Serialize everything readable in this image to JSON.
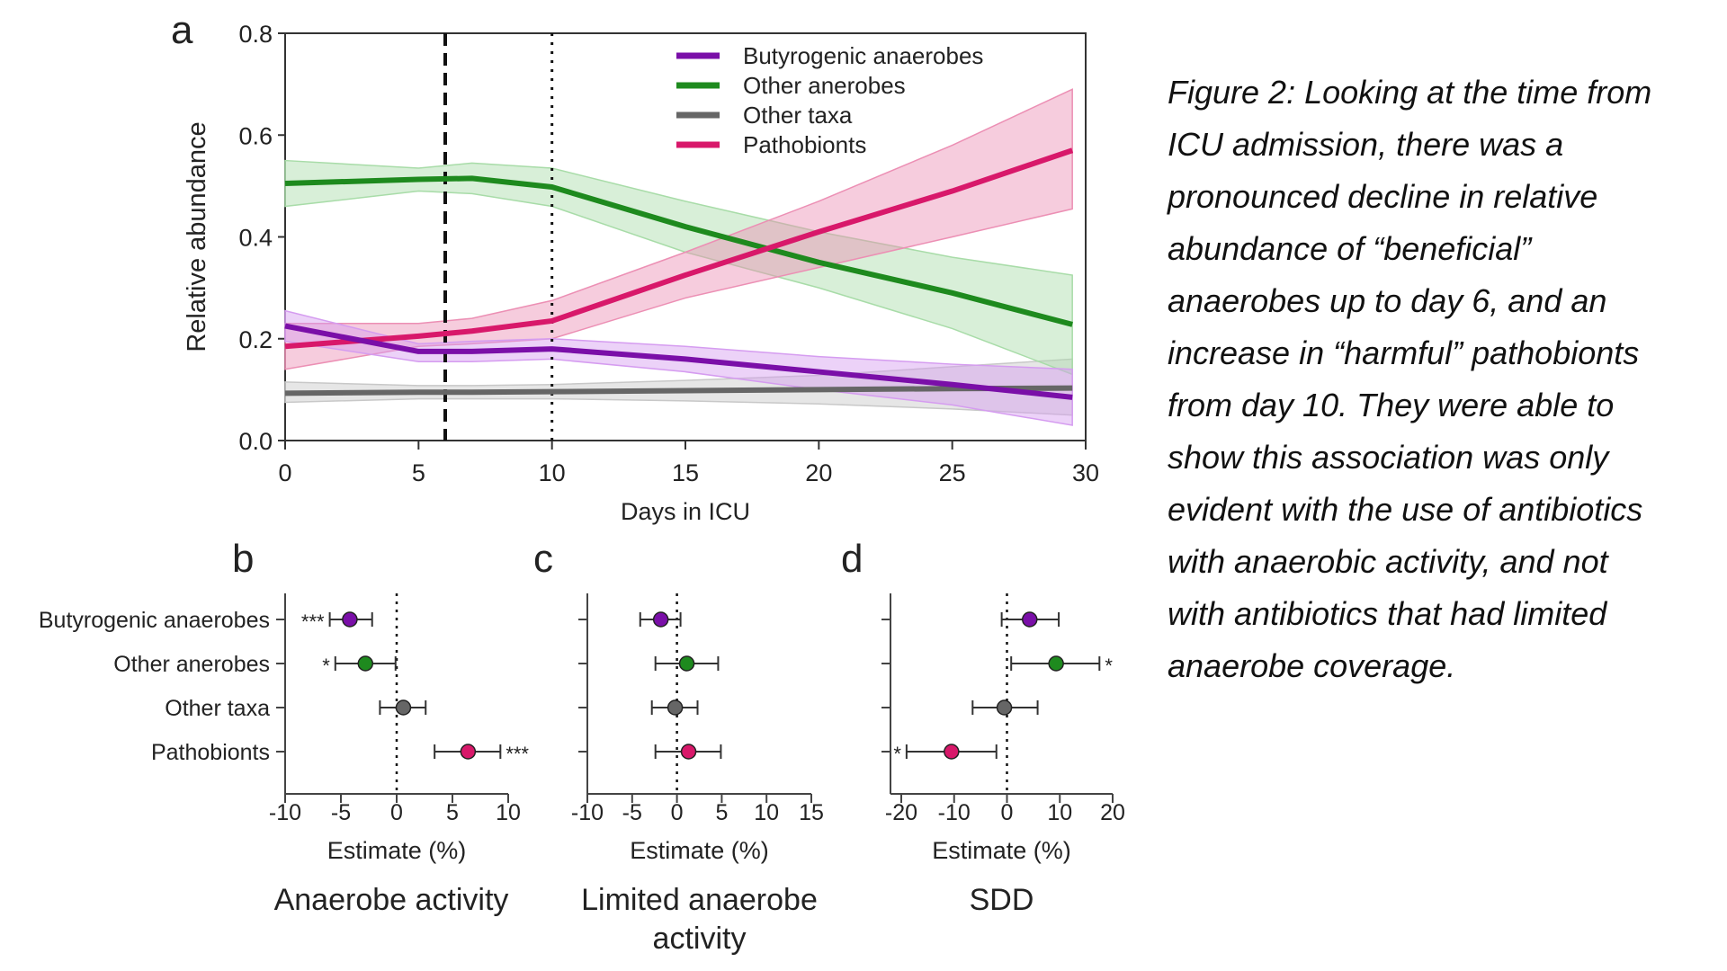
{
  "caption_lines": [
    "Figure 2: Looking at the time from",
    "ICU admission, there was a",
    "pronounced decline in relative",
    "abundance of “beneficial”",
    "anaerobes up to day 6, and an",
    "increase in “harmful” pathobionts",
    "from day 10. They were able to",
    "show this association was only",
    "evident with the use of antibiotics",
    "with anaerobic activity, and not",
    "with antibiotics that had limited",
    "anaerobe coverage."
  ],
  "colors": {
    "Butyrogenic anaerobes": "#7a0fa8",
    "Other anerobes": "#1e8a1e",
    "Other taxa": "#666666",
    "Pathobionts": "#d8186a"
  },
  "band_colors": {
    "Butyrogenic anaerobes": "#d59cf0",
    "Other anerobes": "#a8dca8",
    "Other taxa": "#c8c8c8",
    "Pathobionts": "#ec8fb4"
  },
  "chart_data": [
    {
      "panel": "a",
      "type": "line",
      "xlabel": "Days in ICU",
      "ylabel": "Relative abundance",
      "xlim": [
        0,
        30
      ],
      "ylim": [
        0,
        0.8
      ],
      "xticks": [
        0,
        5,
        10,
        15,
        20,
        25,
        30
      ],
      "yticks": [
        "0.0",
        "0.2",
        "0.4",
        "0.6",
        "0.8"
      ],
      "vlines": [
        {
          "x": 6,
          "style": "dashed"
        },
        {
          "x": 10,
          "style": "dotted"
        }
      ],
      "legend": "top-right",
      "x": [
        0,
        5,
        7,
        10,
        15,
        20,
        25,
        29.5
      ],
      "series": [
        {
          "name": "Butyrogenic anaerobes",
          "values": [
            0.225,
            0.175,
            0.175,
            0.18,
            0.16,
            0.135,
            0.11,
            0.085
          ],
          "lower": [
            0.195,
            0.155,
            0.155,
            0.16,
            0.135,
            0.1,
            0.07,
            0.03
          ],
          "upper": [
            0.255,
            0.19,
            0.195,
            0.2,
            0.185,
            0.165,
            0.15,
            0.14
          ]
        },
        {
          "name": "Other anerobes",
          "values": [
            0.505,
            0.513,
            0.515,
            0.498,
            0.42,
            0.35,
            0.29,
            0.228
          ],
          "lower": [
            0.46,
            0.49,
            0.485,
            0.46,
            0.37,
            0.3,
            0.22,
            0.13
          ],
          "upper": [
            0.55,
            0.535,
            0.545,
            0.535,
            0.47,
            0.41,
            0.36,
            0.325
          ]
        },
        {
          "name": "Other taxa",
          "values": [
            0.093,
            0.095,
            0.095,
            0.096,
            0.098,
            0.1,
            0.102,
            0.103
          ],
          "lower": [
            0.075,
            0.082,
            0.082,
            0.082,
            0.078,
            0.072,
            0.062,
            0.05
          ],
          "upper": [
            0.115,
            0.108,
            0.108,
            0.11,
            0.118,
            0.128,
            0.145,
            0.16
          ]
        },
        {
          "name": "Pathobionts",
          "values": [
            0.185,
            0.205,
            0.215,
            0.235,
            0.325,
            0.41,
            0.49,
            0.57
          ],
          "lower": [
            0.14,
            0.185,
            0.19,
            0.2,
            0.28,
            0.34,
            0.4,
            0.455
          ],
          "upper": [
            0.23,
            0.23,
            0.24,
            0.275,
            0.37,
            0.47,
            0.58,
            0.69
          ]
        }
      ]
    },
    {
      "panel": "b",
      "type": "scatter",
      "title": "Anaerobe activity",
      "xlabel": "Estimate (%)",
      "xlim": [
        -10,
        10
      ],
      "xticks": [
        -10,
        -5,
        0,
        5,
        10
      ],
      "categories": [
        "Butyrogenic anaerobes",
        "Other anerobes",
        "Other taxa",
        "Pathobionts"
      ],
      "estimate": [
        -4.2,
        -2.8,
        0.6,
        6.4
      ],
      "lower": [
        -6.0,
        -5.5,
        -1.5,
        3.4
      ],
      "upper": [
        -2.2,
        -0.1,
        2.6,
        9.3
      ],
      "significance": [
        "***",
        "*",
        "",
        "***"
      ],
      "sig_side": [
        "left",
        "left",
        "",
        "right"
      ]
    },
    {
      "panel": "c",
      "type": "scatter",
      "title": "Limited anaerobe activity",
      "xlabel": "Estimate (%)",
      "xlim": [
        -10,
        15
      ],
      "xticks": [
        -10,
        -5,
        0,
        5,
        10,
        15
      ],
      "categories": [
        "Butyrogenic anaerobes",
        "Other anerobes",
        "Other taxa",
        "Pathobionts"
      ],
      "estimate": [
        -1.8,
        1.1,
        -0.2,
        1.3
      ],
      "lower": [
        -4.1,
        -2.4,
        -2.8,
        -2.4
      ],
      "upper": [
        0.4,
        4.6,
        2.3,
        4.9
      ],
      "significance": [
        "",
        "",
        "",
        ""
      ],
      "sig_side": [
        "",
        "",
        "",
        ""
      ]
    },
    {
      "panel": "d",
      "type": "scatter",
      "title": "SDD",
      "xlabel": "Estimate (%)",
      "xlim": [
        -22,
        20
      ],
      "xticks": [
        -20,
        -10,
        0,
        10,
        20
      ],
      "categories": [
        "Butyrogenic anaerobes",
        "Other anerobes",
        "Other taxa",
        "Pathobionts"
      ],
      "estimate": [
        4.3,
        9.3,
        -0.5,
        -10.5
      ],
      "lower": [
        -1.0,
        0.8,
        -6.5,
        -19.0
      ],
      "upper": [
        9.8,
        17.5,
        5.8,
        -2.0
      ],
      "significance": [
        "",
        "*",
        "",
        "*"
      ],
      "sig_side": [
        "",
        "right",
        "",
        "left"
      ]
    }
  ]
}
